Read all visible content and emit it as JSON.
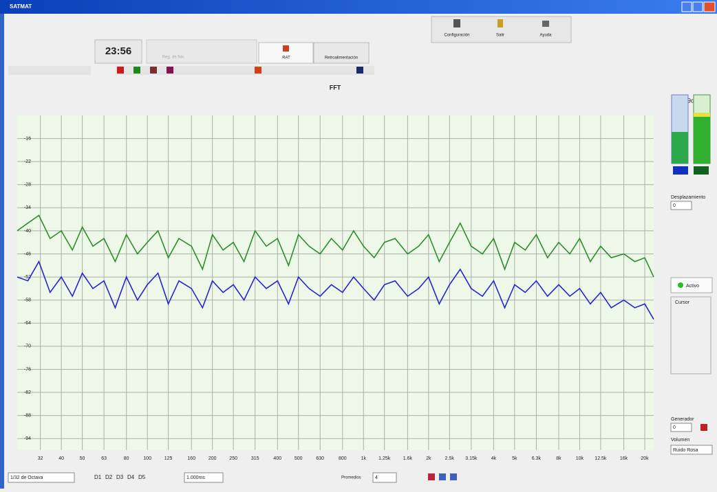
{
  "window": {
    "title": "SATMAT"
  },
  "top_buttons": [
    "Configuración",
    "Salir",
    "Ayuda"
  ],
  "clock": "23:56",
  "tabs": [
    "Reg. de Niv.",
    "RAT",
    "Retroalimentación"
  ],
  "chart_data": {
    "type": "line",
    "title": "FFT",
    "x": [
      25,
      28,
      31.5,
      35.5,
      40,
      45,
      50,
      56,
      63,
      71,
      80,
      90,
      100,
      112,
      125,
      140,
      160,
      180,
      200,
      224,
      250,
      280,
      315,
      355,
      400,
      450,
      500,
      560,
      630,
      710,
      800,
      900,
      1000,
      1120,
      1250,
      1400,
      1600,
      1800,
      2000,
      2240,
      2500,
      2800,
      3150,
      3550,
      4000,
      4500,
      5000,
      5600,
      6300,
      7100,
      8000,
      9000,
      10000,
      11200,
      12500,
      14000,
      16000,
      18000,
      20000,
      22000
    ],
    "series": [
      {
        "color": "#2e8b2e",
        "values": [
          -40,
          -38,
          -36,
          -42,
          -40,
          -45,
          -39,
          -44,
          -42,
          -48,
          -41,
          -46,
          -43,
          -40,
          -47,
          -42,
          -44,
          -50,
          -41,
          -45,
          -43,
          -48,
          -40,
          -44,
          -42,
          -49,
          -41,
          -44,
          -46,
          -42,
          -45,
          -40,
          -44,
          -47,
          -43,
          -42,
          -46,
          -44,
          -41,
          -48,
          -43,
          -38,
          -44,
          -46,
          -42,
          -50,
          -43,
          -45,
          -41,
          -47,
          -43,
          -46,
          -42,
          -48,
          -44,
          -47,
          -46,
          -48,
          -47,
          -52
        ]
      },
      {
        "color": "#2424d0",
        "values": [
          -52,
          -53,
          -48,
          -56,
          -52,
          -57,
          -51,
          -55,
          -53,
          -60,
          -52,
          -58,
          -54,
          -51,
          -59,
          -53,
          -55,
          -60,
          -53,
          -56,
          -54,
          -58,
          -52,
          -55,
          -53,
          -59,
          -52,
          -55,
          -57,
          -54,
          -56,
          -52,
          -55,
          -58,
          -54,
          -53,
          -57,
          -55,
          -52,
          -59,
          -54,
          -50,
          -55,
          -57,
          -53,
          -60,
          -54,
          -56,
          -53,
          -57,
          -54,
          -57,
          -55,
          -59,
          -56,
          -60,
          -58,
          -60,
          -59,
          -63
        ]
      }
    ],
    "xscale": "log",
    "xlim": [
      25,
      22000
    ],
    "xticks": [
      32,
      40,
      50,
      63,
      80,
      100,
      125,
      160,
      200,
      250,
      315,
      400,
      500,
      630,
      800,
      {
        "value": 1000,
        "label": "1k"
      },
      {
        "value": 1250,
        "label": "1.25k"
      },
      {
        "value": 1600,
        "label": "1.6k"
      },
      {
        "value": 2000,
        "label": "2k"
      },
      {
        "value": 2500,
        "label": "2.5k"
      },
      {
        "value": 3150,
        "label": "3.15k"
      },
      {
        "value": 4000,
        "label": "4k"
      },
      {
        "value": 5000,
        "label": "5k"
      },
      {
        "value": 6300,
        "label": "6.3k"
      },
      {
        "value": 8000,
        "label": "8k"
      },
      {
        "value": 10000,
        "label": "10k"
      },
      {
        "value": 12500,
        "label": "12.5k"
      },
      {
        "value": 16000,
        "label": "16k"
      },
      {
        "value": 20000,
        "label": "20k"
      }
    ],
    "ylim": [
      -97,
      -10
    ],
    "yticks": [
      -16,
      -22,
      -28,
      -34,
      -40,
      -46,
      -52,
      -58,
      -64,
      -70,
      -76,
      -82,
      -88,
      -94
    ],
    "grid": true,
    "background": "#eef8e8"
  },
  "meter": {
    "label": "-29dB"
  },
  "side": {
    "offset_label": "Desplazamiento",
    "offset_value": "0",
    "active": "Activo",
    "cursor": "Cursor",
    "generator": "Generador",
    "generator_value": "0",
    "volume": "Volumen",
    "signal": "Ruido Rosa"
  },
  "bottom": {
    "resolution": "1/32 de Octava",
    "memories": [
      "D1",
      "D2",
      "D3",
      "D4",
      "D5"
    ],
    "time": "1.000ms",
    "averages_label": "Promedios",
    "averages_value": "4"
  }
}
